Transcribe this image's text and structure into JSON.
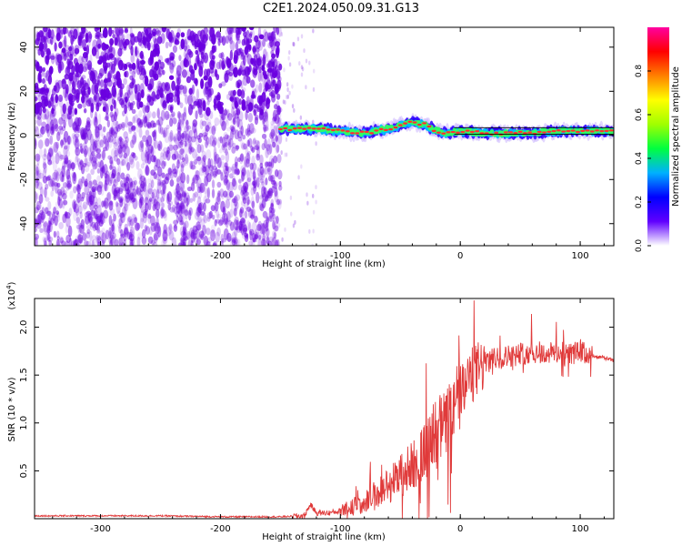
{
  "figure": {
    "title": "C2E1.2024.050.09.31.G13"
  },
  "colors": {
    "noise": "#6a00e0",
    "signal_line": "#e03a3a",
    "colorbar_stops": [
      "#ffffff",
      "#6000ff",
      "#0000ff",
      "#00b0ff",
      "#00ff40",
      "#a0ff00",
      "#ffff00",
      "#ff8000",
      "#ff0000",
      "#ff00a0"
    ]
  },
  "chart_data": [
    {
      "type": "heatmap",
      "title": "C2E1.2024.050.09.31.G13",
      "xlabel": "Height of straight line (km)",
      "ylabel": "Frequency (Hz)",
      "xlim": [
        -355,
        128
      ],
      "ylim": [
        -50,
        49
      ],
      "x_ticks": [
        "-300",
        "-200",
        "-100",
        "0",
        "100"
      ],
      "y_ticks": [
        "-40",
        "-20",
        "0",
        "20",
        "40"
      ],
      "colorbar": {
        "label": "Normalized spectral amplitude",
        "range": [
          0.0,
          1.0
        ],
        "ticks": [
          "0.0",
          "0.2",
          "0.4",
          "0.6",
          "0.8"
        ]
      },
      "signal_band": {
        "height_km": [
          -150,
          -120,
          -100,
          -80,
          -60,
          -40,
          -30,
          -20,
          -10,
          0,
          20,
          40,
          60,
          80,
          100,
          120
        ],
        "frequency_hz": [
          3,
          3,
          2,
          1,
          3,
          6,
          5,
          2,
          1,
          2,
          1,
          1,
          1,
          2,
          2,
          2
        ]
      },
      "noise_extent_km": [
        -355,
        -150
      ]
    },
    {
      "type": "line",
      "xlabel": "Height of straight line (km)",
      "ylabel": "SNR (10 * v/v)",
      "y_multiplier": "(x10^4)",
      "y_multiplier_base": "(x10",
      "y_multiplier_exp": "4",
      "y_multiplier_close": ")",
      "xlim": [
        -355,
        128
      ],
      "ylim": [
        0,
        2.3
      ],
      "x_ticks": [
        "-300",
        "-200",
        "-100",
        "0",
        "100"
      ],
      "y_ticks": [
        "0.5",
        "1.0",
        "1.5",
        "2.0"
      ],
      "series": [
        {
          "x": [
            -355,
            -300,
            -250,
            -200,
            -150,
            -130,
            -125,
            -120,
            -110,
            -100,
            -90,
            -80,
            -70,
            -60,
            -50,
            -40,
            -30,
            -20,
            -10,
            0,
            10,
            20,
            30,
            40,
            50,
            60,
            70,
            80,
            90,
            100,
            110,
            120,
            128
          ],
          "y": [
            0.03,
            0.03,
            0.03,
            0.02,
            0.02,
            0.03,
            0.15,
            0.06,
            0.06,
            0.08,
            0.12,
            0.18,
            0.25,
            0.35,
            0.45,
            0.55,
            0.7,
            0.85,
            1.05,
            1.3,
            1.5,
            1.62,
            1.68,
            1.7,
            1.72,
            1.74,
            1.72,
            1.74,
            1.72,
            1.74,
            1.7,
            1.68,
            1.65
          ]
        }
      ]
    }
  ]
}
